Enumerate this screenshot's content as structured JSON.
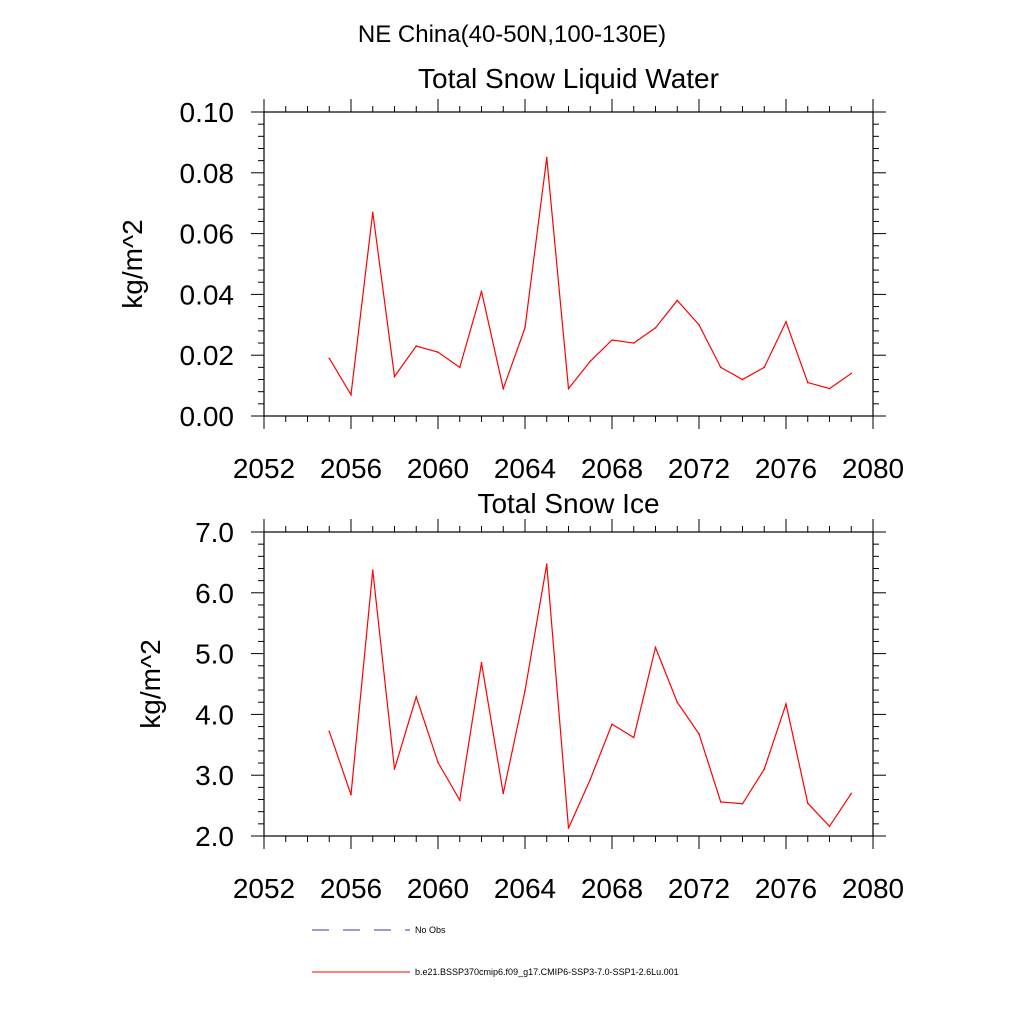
{
  "figure_title": "NE China(40-50N,100-130E)",
  "legend": [
    {
      "label": "No Obs",
      "color": "#3b3b8c",
      "dash": "dashed"
    },
    {
      "label": "b.e21.BSSP370cmip6.f09_g17.CMIP6-SSP3-7.0-SSP1-2.6Lu.001",
      "color": "#ff0000",
      "dash": "solid"
    }
  ],
  "chart_data": [
    {
      "type": "line",
      "title": "Total Snow Liquid Water",
      "xlabel": "",
      "ylabel": "kg/m^2",
      "xlim": [
        2052,
        2080
      ],
      "ylim": [
        0.0,
        0.1
      ],
      "xticks": [
        2052,
        2056,
        2060,
        2064,
        2068,
        2072,
        2076,
        2080
      ],
      "xtick_labels": [
        "2052",
        "2056",
        "2060",
        "2064",
        "2068",
        "2072",
        "2076",
        "2080"
      ],
      "yticks": [
        0.0,
        0.02,
        0.04,
        0.06,
        0.08,
        0.1
      ],
      "ytick_labels": [
        "0.00",
        "0.02",
        "0.04",
        "0.06",
        "0.08",
        "0.10"
      ],
      "grid": false,
      "x": [
        2055,
        2056,
        2057,
        2058,
        2059,
        2060,
        2061,
        2062,
        2063,
        2064,
        2065,
        2066,
        2067,
        2068,
        2069,
        2070,
        2071,
        2072,
        2073,
        2074,
        2075,
        2076,
        2077,
        2078,
        2079
      ],
      "series": [
        {
          "color": "#ff0000",
          "values": [
            0.019,
            0.007,
            0.067,
            0.013,
            0.023,
            0.021,
            0.016,
            0.041,
            0.009,
            0.029,
            0.085,
            0.009,
            0.018,
            0.025,
            0.024,
            0.029,
            0.038,
            0.03,
            0.016,
            0.012,
            0.016,
            0.031,
            0.011,
            0.009,
            0.014
          ]
        }
      ]
    },
    {
      "type": "line",
      "title": "Total Snow Ice",
      "xlabel": "",
      "ylabel": "kg/m^2",
      "xlim": [
        2052,
        2080
      ],
      "ylim": [
        2.0,
        7.0
      ],
      "xticks": [
        2052,
        2056,
        2060,
        2064,
        2068,
        2072,
        2076,
        2080
      ],
      "xtick_labels": [
        "2052",
        "2056",
        "2060",
        "2064",
        "2068",
        "2072",
        "2076",
        "2080"
      ],
      "yticks": [
        2.0,
        3.0,
        4.0,
        5.0,
        6.0,
        7.0
      ],
      "ytick_labels": [
        "2.0",
        "3.0",
        "4.0",
        "5.0",
        "6.0",
        "7.0"
      ],
      "grid": false,
      "x": [
        2055,
        2056,
        2057,
        2058,
        2059,
        2060,
        2061,
        2062,
        2063,
        2064,
        2065,
        2066,
        2067,
        2068,
        2069,
        2070,
        2071,
        2072,
        2073,
        2074,
        2075,
        2076,
        2077,
        2078,
        2079
      ],
      "series": [
        {
          "color": "#ff0000",
          "values": [
            3.72,
            2.68,
            6.37,
            3.1,
            4.29,
            3.21,
            2.59,
            4.85,
            2.7,
            4.39,
            6.47,
            2.13,
            2.93,
            3.84,
            3.62,
            5.1,
            4.2,
            3.68,
            2.56,
            2.53,
            3.1,
            4.17,
            2.54,
            2.16,
            2.7
          ]
        }
      ]
    }
  ]
}
